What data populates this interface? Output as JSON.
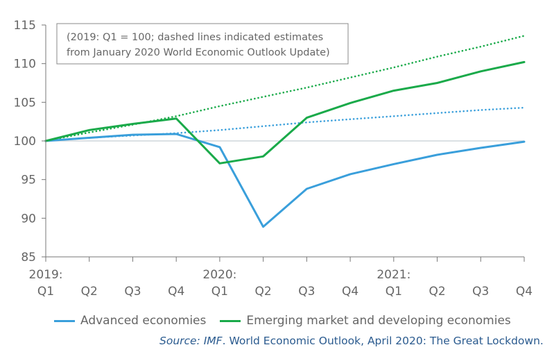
{
  "chart_data": {
    "type": "line",
    "note": [
      "(2019: Q1 = 100; dashed lines indicated estimates",
      "from January 2020 World Economic Outlook Update)"
    ],
    "categories": [
      "Q1",
      "Q2",
      "Q3",
      "Q4",
      "Q1",
      "Q2",
      "Q3",
      "Q4",
      "Q1",
      "Q2",
      "Q3",
      "Q4"
    ],
    "year_labels": [
      {
        "index": 0,
        "label": "2019:"
      },
      {
        "index": 4,
        "label": "2020:"
      },
      {
        "index": 8,
        "label": "2021:"
      }
    ],
    "ylim": [
      85,
      115
    ],
    "yticks": [
      85,
      90,
      95,
      100,
      105,
      110,
      115
    ],
    "series": [
      {
        "name": "Advanced economies",
        "color": "#3a9fdb",
        "style": "solid",
        "values": [
          100,
          100.4,
          100.8,
          100.9,
          99.2,
          88.9,
          93.8,
          95.7,
          97.0,
          98.2,
          99.1,
          99.9
        ]
      },
      {
        "name": "Emerging market and developing economies",
        "color": "#1aaa4a",
        "style": "solid",
        "values": [
          100,
          101.4,
          102.2,
          102.9,
          97.1,
          98.0,
          103.0,
          104.9,
          106.5,
          107.5,
          109.0,
          110.2
        ]
      },
      {
        "name": "",
        "color": "#3a9fdb",
        "style": "dotted",
        "values": [
          100,
          100.4,
          100.7,
          101.0,
          101.4,
          101.9,
          102.4,
          102.8,
          103.2,
          103.6,
          104.0,
          104.3
        ]
      },
      {
        "name": "",
        "color": "#1aaa4a",
        "style": "dotted",
        "values": [
          100,
          101.1,
          102.1,
          103.2,
          104.5,
          105.7,
          106.9,
          108.2,
          109.5,
          110.9,
          112.2,
          113.6
        ]
      }
    ],
    "reference_line": 100,
    "legend_position": "bottom"
  },
  "source": {
    "label": "Source: IMF",
    "text": ". World Economic Outlook, April 2020: The Great Lockdown."
  }
}
